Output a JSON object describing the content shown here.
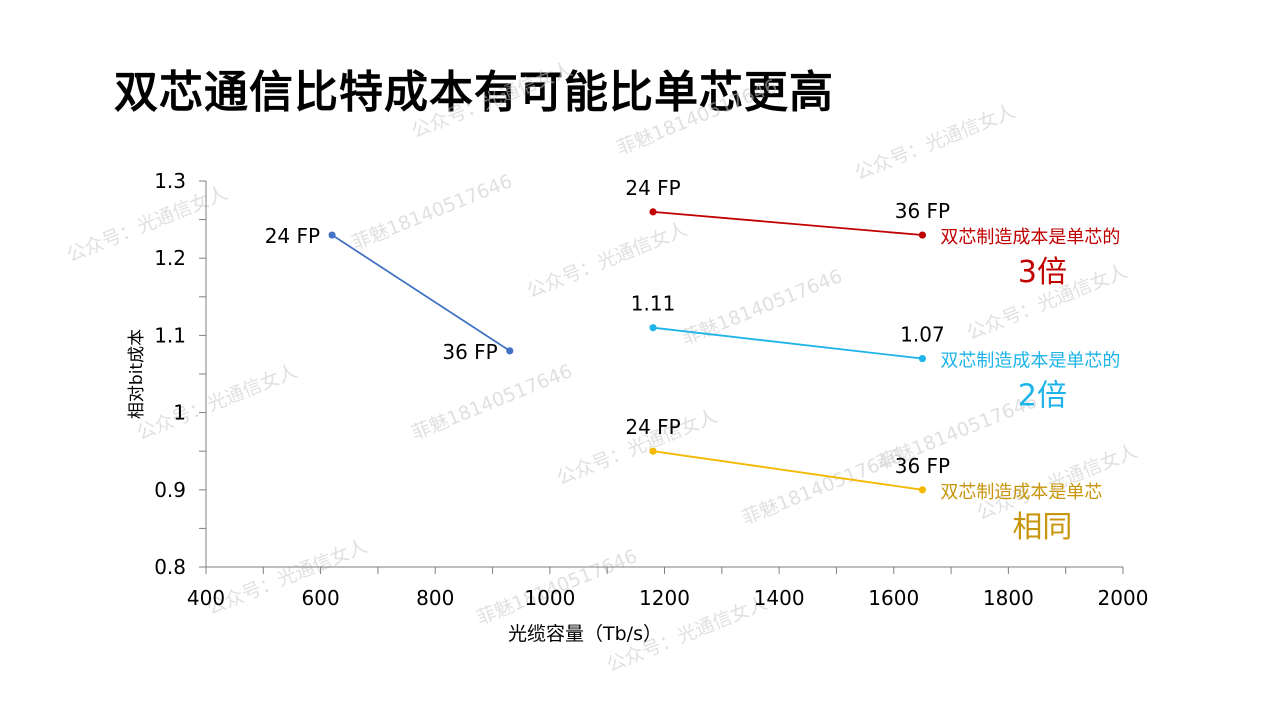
{
  "slide": {
    "title": "双芯通信比特成本有可能比单芯更高"
  },
  "watermarks": [
    "公众号：光通信女人",
    "菲魅18140517646"
  ],
  "chart_data": {
    "type": "line",
    "xlabel": "光缆容量（Tb/s）",
    "ylabel": "相对bit成本",
    "xlim": [
      400,
      2000
    ],
    "ylim": [
      0.8,
      1.3
    ],
    "x_ticks": [
      400,
      600,
      800,
      1000,
      1200,
      1400,
      1600,
      1800,
      2000
    ],
    "x_tick_labels": [
      "400",
      "600",
      "800",
      "1000",
      "1200",
      "1400",
      "1600",
      "1800",
      "2000"
    ],
    "y_ticks": [
      0.8,
      0.9,
      1.0,
      1.1,
      1.2,
      1.3
    ],
    "y_tick_labels": [
      "0.8",
      "0.9",
      "1",
      "1.1",
      "1.2",
      "1.3"
    ],
    "grid": false,
    "series": [
      {
        "color": "#4472c4",
        "points": [
          {
            "x": 620,
            "y": 1.23,
            "label": "24 FP"
          },
          {
            "x": 930,
            "y": 1.08,
            "label": "36 FP"
          }
        ]
      },
      {
        "color": "#c00000",
        "points": [
          {
            "x": 1180,
            "y": 1.26,
            "label": "24 FP"
          },
          {
            "x": 1650,
            "y": 1.23,
            "label": "36 FP"
          }
        ],
        "annotation": "双芯制造成本是单芯的",
        "annotation_big": "3倍"
      },
      {
        "color": "#1eb4e8",
        "points": [
          {
            "x": 1180,
            "y": 1.11,
            "label": "1.11"
          },
          {
            "x": 1650,
            "y": 1.07,
            "label": "1.07"
          }
        ],
        "annotation": "双芯制造成本是单芯的",
        "annotation_big": "2倍"
      },
      {
        "color": "#f5b800",
        "text_color": "#c8960c",
        "points": [
          {
            "x": 1180,
            "y": 0.95,
            "label": "24 FP"
          },
          {
            "x": 1650,
            "y": 0.9,
            "label": "36 FP"
          }
        ],
        "annotation": "双芯制造成本是单芯",
        "annotation_big": "相同"
      }
    ]
  }
}
